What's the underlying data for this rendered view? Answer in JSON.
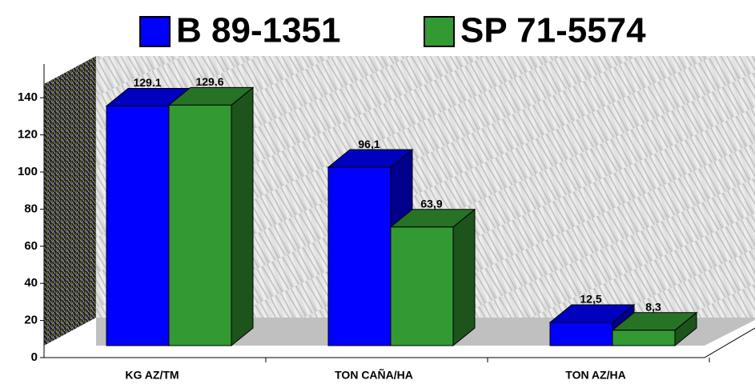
{
  "chart_data": {
    "type": "bar3d",
    "categories": [
      "KG AZ/TM",
      "TON CAÑA/HA",
      "TON AZ/HA"
    ],
    "series": [
      {
        "name": "B 89-1351",
        "color": "#0000ff",
        "values": [
          129.1,
          96.1,
          12.5
        ],
        "value_labels": [
          "129.1",
          "96,1",
          "12,5"
        ]
      },
      {
        "name": "SP 71-5574",
        "color": "#339933",
        "values": [
          129.6,
          63.9,
          8.3
        ],
        "value_labels": [
          "129.6",
          "63,9",
          "8,3"
        ]
      }
    ],
    "ylim": [
      0,
      160
    ],
    "yticks": [
      0,
      20,
      40,
      60,
      80,
      100,
      120,
      140
    ]
  }
}
